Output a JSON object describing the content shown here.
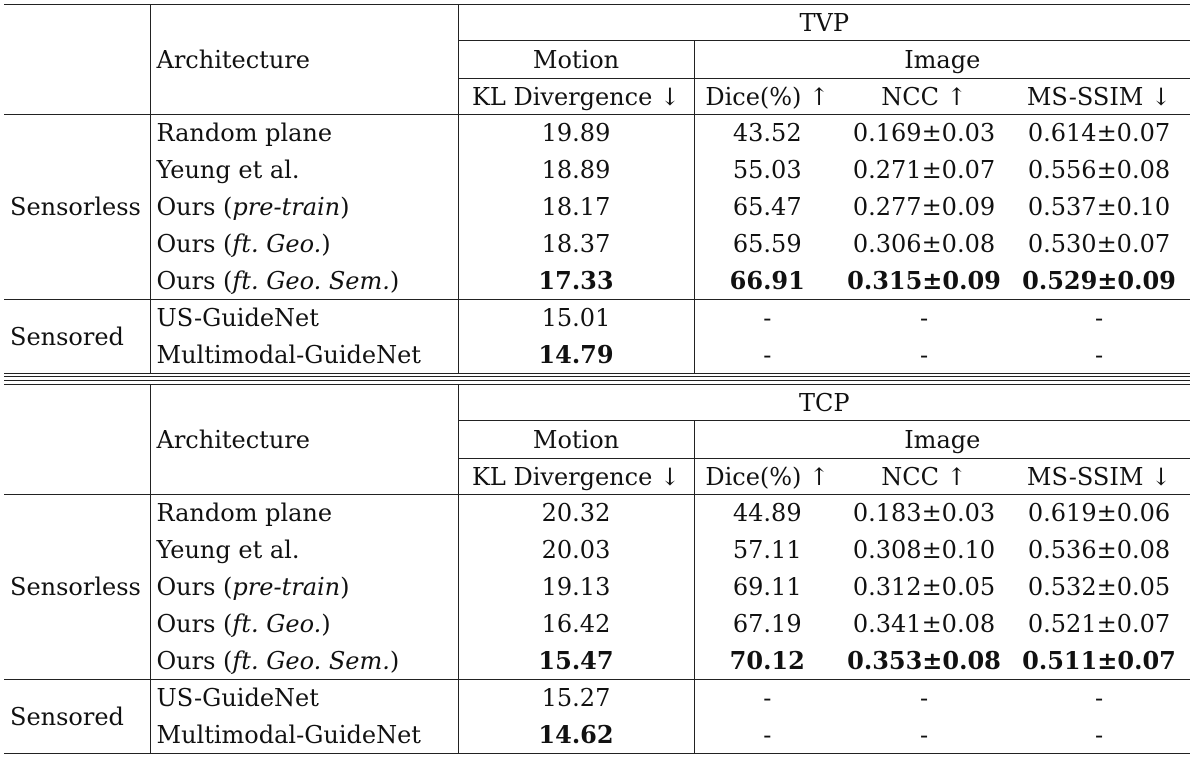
{
  "tables": [
    {
      "dataset": "TVP",
      "header": {
        "architecture": "Architecture",
        "motion": "Motion",
        "image": "Image",
        "kl": "KL Divergence ↓",
        "dice": "Dice(%) ↑",
        "ncc": "NCC ↑",
        "msssim": "MS-SSIM ↓"
      },
      "groups": [
        {
          "label": "Sensorless",
          "rows": [
            {
              "name": "Random plane",
              "name_em": "",
              "kl": "19.89",
              "dice": "43.52",
              "ncc": "0.169±0.03",
              "msssim": "0.614±0.07",
              "bold": false
            },
            {
              "name": "Yeung et al.",
              "name_em": "",
              "kl": "18.89",
              "dice": "55.03",
              "ncc": "0.271±0.07",
              "msssim": "0.556±0.08",
              "bold": false
            },
            {
              "name": "Ours (",
              "name_em": "pre-train",
              "kl": "18.17",
              "dice": "65.47",
              "ncc": "0.277±0.09",
              "msssim": "0.537±0.10",
              "bold": false
            },
            {
              "name": "Ours (",
              "name_em": "ft. Geo.",
              "kl": "18.37",
              "dice": "65.59",
              "ncc": "0.306±0.08",
              "msssim": "0.530±0.07",
              "bold": false
            },
            {
              "name": "Ours (",
              "name_em": "ft. Geo. Sem.",
              "kl": "17.33",
              "dice": "66.91",
              "ncc": "0.315±0.09",
              "msssim": "0.529±0.09",
              "bold": true
            }
          ]
        },
        {
          "label": "Sensored",
          "rows": [
            {
              "name": "US-GuideNet",
              "name_em": "",
              "kl": "15.01",
              "dice": "-",
              "ncc": "-",
              "msssim": "-",
              "bold": false
            },
            {
              "name": "Multimodal-GuideNet",
              "name_em": "",
              "kl": "14.79",
              "dice": "-",
              "ncc": "-",
              "msssim": "-",
              "bold": false,
              "bold_kl": true
            }
          ]
        }
      ]
    },
    {
      "dataset": "TCP",
      "header": {
        "architecture": "Architecture",
        "motion": "Motion",
        "image": "Image",
        "kl": "KL Divergence ↓",
        "dice": "Dice(%) ↑",
        "ncc": "NCC ↑",
        "msssim": "MS-SSIM ↓"
      },
      "groups": [
        {
          "label": "Sensorless",
          "rows": [
            {
              "name": "Random plane",
              "name_em": "",
              "kl": "20.32",
              "dice": "44.89",
              "ncc": "0.183±0.03",
              "msssim": "0.619±0.06",
              "bold": false
            },
            {
              "name": "Yeung et al.",
              "name_em": "",
              "kl": "20.03",
              "dice": "57.11",
              "ncc": "0.308±0.10",
              "msssim": "0.536±0.08",
              "bold": false
            },
            {
              "name": "Ours (",
              "name_em": "pre-train",
              "kl": "19.13",
              "dice": "69.11",
              "ncc": "0.312±0.05",
              "msssim": "0.532±0.05",
              "bold": false
            },
            {
              "name": "Ours (",
              "name_em": "ft. Geo.",
              "kl": "16.42",
              "dice": "67.19",
              "ncc": "0.341±0.08",
              "msssim": "0.521±0.07",
              "bold": false
            },
            {
              "name": "Ours (",
              "name_em": "ft. Geo. Sem.",
              "kl": "15.47",
              "dice": "70.12",
              "ncc": "0.353±0.08",
              "msssim": "0.511±0.07",
              "bold": true
            }
          ]
        },
        {
          "label": "Sensored",
          "rows": [
            {
              "name": "US-GuideNet",
              "name_em": "",
              "kl": "15.27",
              "dice": "-",
              "ncc": "-",
              "msssim": "-",
              "bold": false
            },
            {
              "name": "Multimodal-GuideNet",
              "name_em": "",
              "kl": "14.62",
              "dice": "-",
              "ncc": "-",
              "msssim": "-",
              "bold": false,
              "bold_kl": true
            }
          ]
        }
      ]
    }
  ]
}
